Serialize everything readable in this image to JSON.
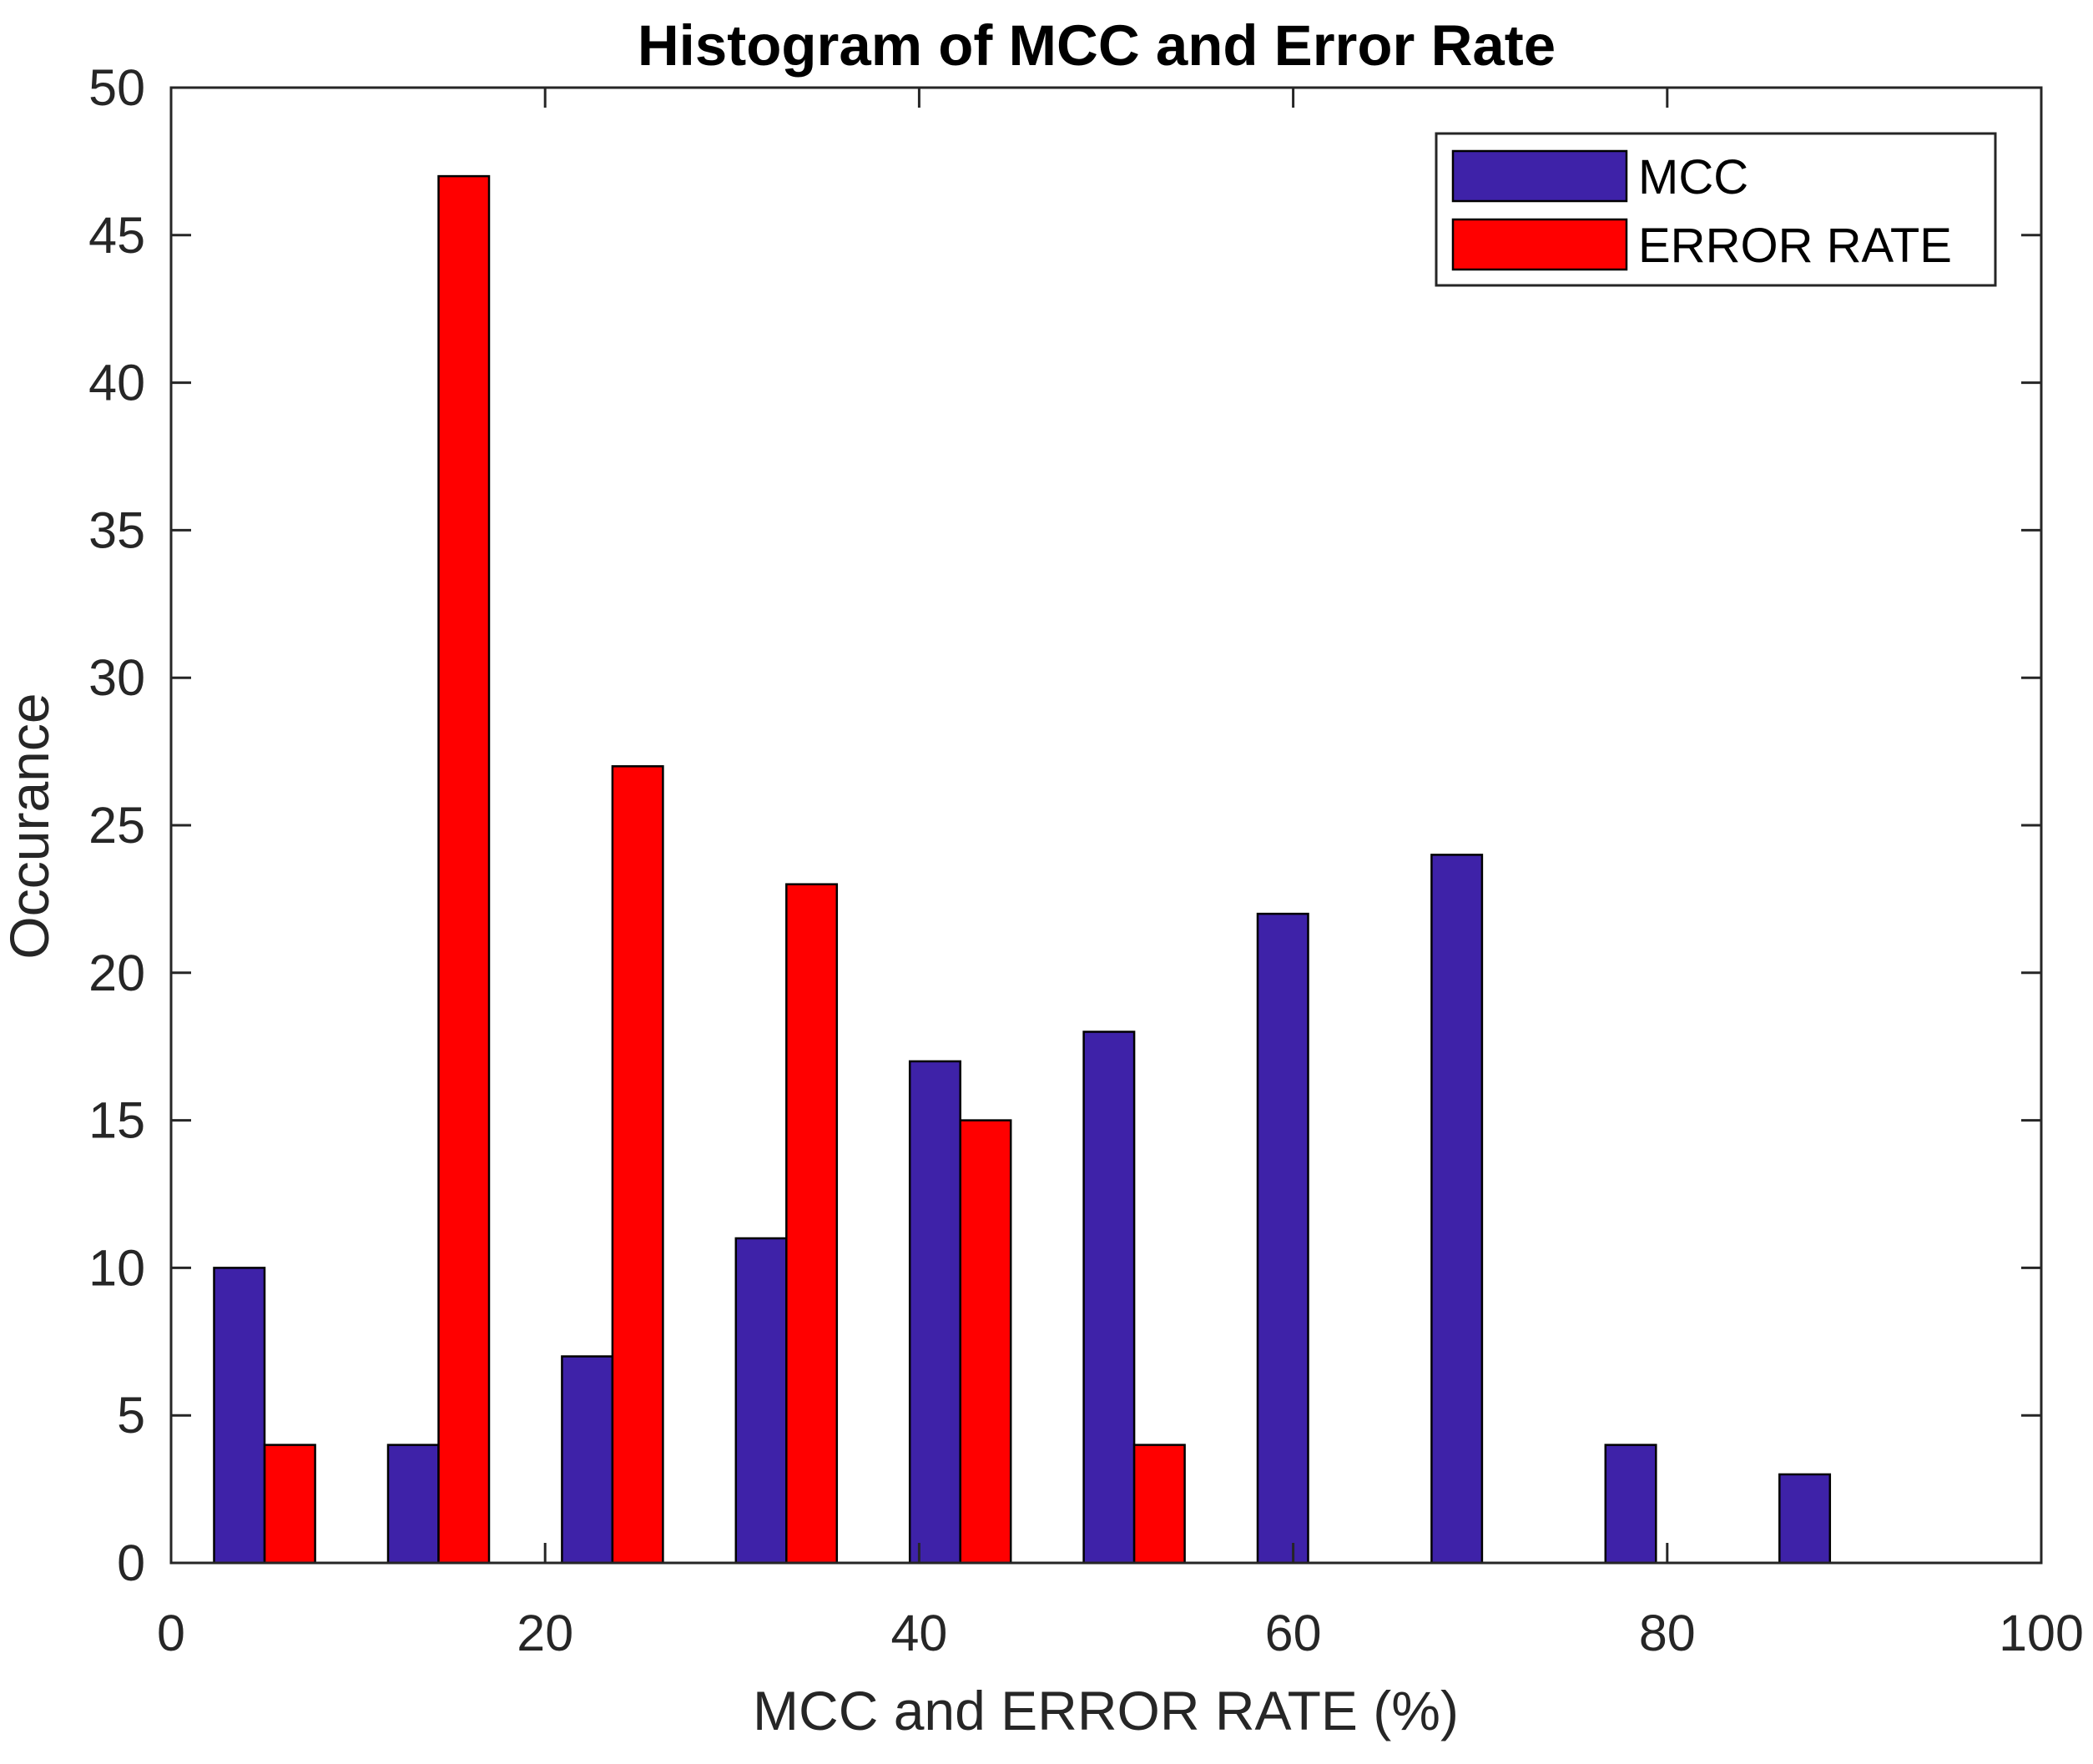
{
  "chart_data": {
    "type": "bar",
    "title": "Histogram of MCC and Error Rate",
    "xlabel": "MCC and ERROR RATE (%)",
    "ylabel": "Occurance",
    "xlim": [
      0,
      100
    ],
    "ylim": [
      0,
      50
    ],
    "xticks": [
      0,
      20,
      40,
      60,
      80,
      100
    ],
    "yticks": [
      0,
      5,
      10,
      15,
      20,
      25,
      30,
      35,
      40,
      45,
      50
    ],
    "bin_centers": [
      5,
      14.3,
      23.6,
      32.9,
      42.2,
      51.5,
      60.8,
      70.1,
      79.4,
      88.7
    ],
    "bar_width": 2.7,
    "grid": false,
    "legend_position": "top-right",
    "series": [
      {
        "name": "MCC",
        "color": "#3E22A8",
        "values": [
          10,
          4,
          7,
          11,
          17,
          18,
          22,
          24,
          4,
          3
        ]
      },
      {
        "name": "ERROR RATE",
        "color": "#FF0000",
        "values": [
          4,
          47,
          27,
          23,
          15,
          4,
          0,
          0,
          0,
          0
        ]
      }
    ]
  }
}
